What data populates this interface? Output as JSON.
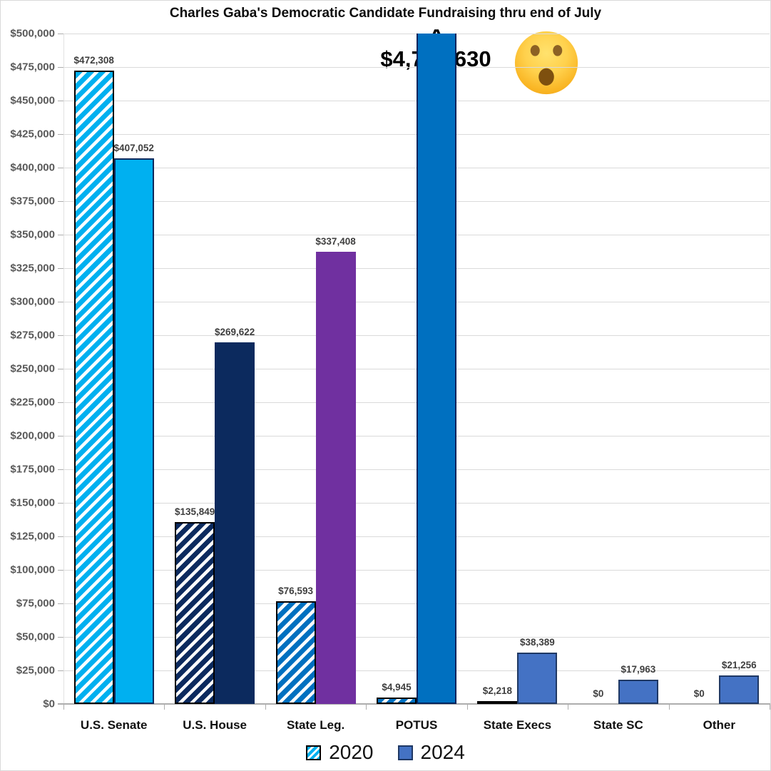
{
  "chart_data": {
    "type": "bar",
    "title": "Charles Gaba's Democratic Candidate Fundraising thru end of July",
    "categories": [
      "U.S. Senate",
      "U.S. House",
      "State Leg.",
      "POTUS",
      "State Execs",
      "State SC",
      "Other"
    ],
    "series": [
      {
        "name": "2020",
        "pattern": "diagonal-hatch",
        "values": [
          472308,
          135849,
          76593,
          4945,
          2218,
          0,
          0
        ],
        "labels": [
          "$472,308",
          "$135,849",
          "$76,593",
          "$4,945",
          "$2,218",
          "$0",
          "$0"
        ],
        "colors": [
          "#00B0F0",
          "#0C2A5E",
          "#0070C0",
          "#0070C0",
          "#00B0F0",
          "#00B0F0",
          "#00B0F0"
        ],
        "borders": [
          "#000000",
          "#000000",
          "#000000",
          "#000000",
          "#000000",
          null,
          null
        ],
        "legend_swatch": {
          "fill": "#00B0F0",
          "pattern": "diagonal-hatch",
          "border": "#000000"
        }
      },
      {
        "name": "2024",
        "pattern": "solid",
        "values": [
          407052,
          269622,
          337408,
          4736630,
          38389,
          17963,
          21256
        ],
        "labels": [
          "$407,052",
          "$269,622",
          "$337,408",
          "$4,736,630",
          "$38,389",
          "$17,963",
          "$21,256"
        ],
        "colors": [
          "#00B0F0",
          "#0C2A5E",
          "#7030A0",
          "#0070C0",
          "#4472C4",
          "#4472C4",
          "#4472C4"
        ],
        "borders": [
          "#0C2A5E",
          null,
          null,
          "#03245C",
          "#1F3864",
          "#1F3864",
          "#1F3864"
        ],
        "legend_swatch": {
          "fill": "#4472C4",
          "pattern": "solid",
          "border": "#1F3864"
        }
      }
    ],
    "ylim": [
      0,
      500000
    ],
    "ytick_step": 25000,
    "ytick_labels": [
      "$0",
      "$25,000",
      "$50,000",
      "$75,000",
      "$100,000",
      "$125,000",
      "$150,000",
      "$175,000",
      "$200,000",
      "$225,000",
      "$250,000",
      "$275,000",
      "$300,000",
      "$325,000",
      "$350,000",
      "$375,000",
      "$400,000",
      "$425,000",
      "$450,000",
      "$475,000",
      "$500,000"
    ],
    "grid": true,
    "legend_position": "bottom",
    "annotations": {
      "overflow_category": "POTUS",
      "overflow_series": "2024",
      "overflow_marker": "^",
      "callout_label": "$4,736,630",
      "emoji": "face-with-open-mouth-emoji"
    }
  }
}
